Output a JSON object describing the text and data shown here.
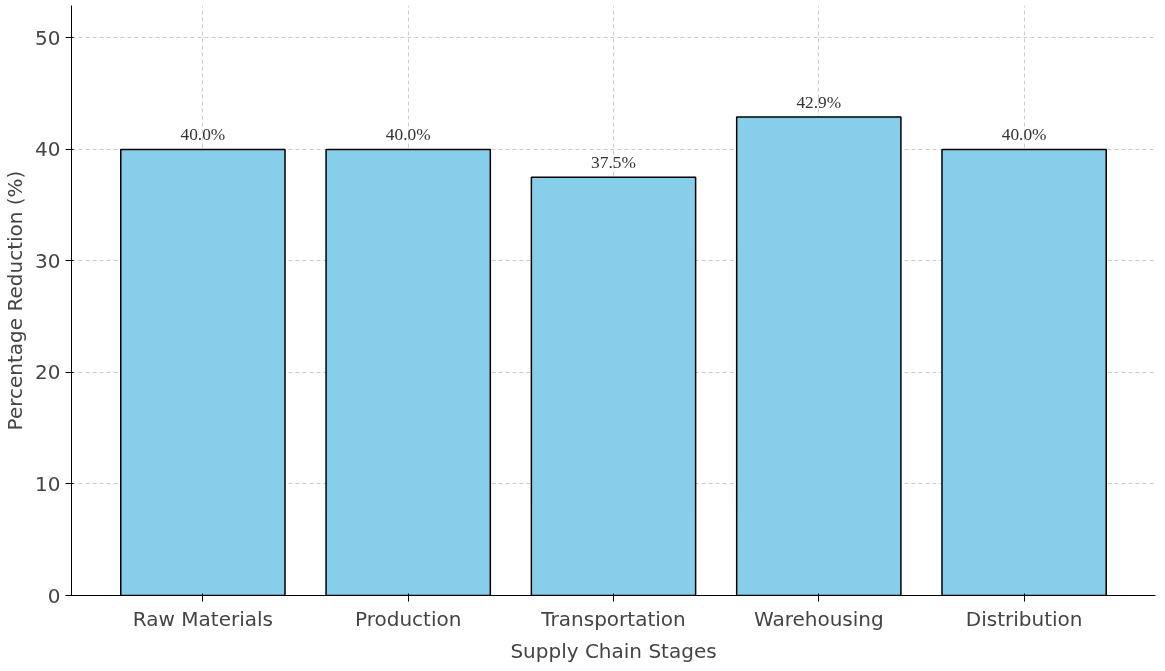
{
  "chart_data": {
    "type": "bar",
    "xlabel": "Supply Chain Stages",
    "ylabel": "Percentage Reduction (%)",
    "categories": [
      "Raw Materials",
      "Production",
      "Transportation",
      "Warehousing",
      "Distribution"
    ],
    "values": [
      40.0,
      40.0,
      37.5,
      42.9,
      40.0
    ],
    "value_labels": [
      "40.0%",
      "40.0%",
      "37.5%",
      "42.9%",
      "40.0%"
    ],
    "color": "#87ceeb",
    "ylim": [
      0,
      52.9
    ],
    "yticks": [
      0,
      10,
      20,
      30,
      40,
      50
    ],
    "grid": true
  }
}
